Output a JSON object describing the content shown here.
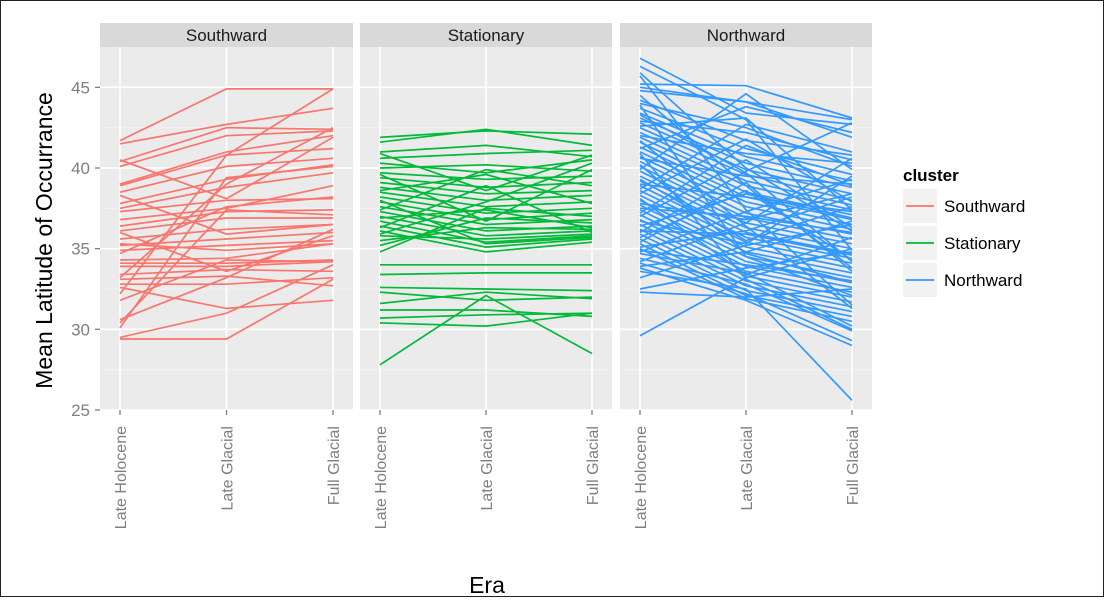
{
  "chart_data": {
    "type": "line",
    "ylabel": "Mean Latitude of Occurrance",
    "xlabel": "Era",
    "ylim": [
      25,
      47.5
    ],
    "yticks": [
      25,
      30,
      35,
      40,
      45
    ],
    "x_categories": [
      "Late Holocene",
      "Late Glacial",
      "Full Glacial"
    ],
    "grid": "on",
    "legend": {
      "title": "cluster",
      "position": "right"
    },
    "colors": {
      "Southward": "#F8766D",
      "Stationary": "#00BA38",
      "Northward": "#3399FF"
    },
    "panels": [
      {
        "name": "Southward",
        "lines": [
          [
            41.7,
            44.9,
            44.9
          ],
          [
            41.5,
            42.7,
            43.7
          ],
          [
            40.4,
            42.5,
            42.4
          ],
          [
            40.1,
            42.0,
            42.3
          ],
          [
            39.0,
            41.0,
            42.0
          ],
          [
            38.9,
            40.8,
            41.2
          ],
          [
            38.5,
            40.1,
            40.6
          ],
          [
            37.8,
            39.3,
            40.2
          ],
          [
            37.5,
            38.8,
            39.7
          ],
          [
            37.3,
            38.0,
            38.1
          ],
          [
            36.8,
            37.5,
            38.9
          ],
          [
            36.4,
            37.3,
            37.4
          ],
          [
            36.1,
            36.9,
            36.9
          ],
          [
            35.6,
            36.2,
            36.5
          ],
          [
            35.2,
            35.6,
            36.0
          ],
          [
            34.9,
            35.2,
            35.5
          ],
          [
            34.3,
            34.4,
            35.3
          ],
          [
            34.1,
            34.1,
            34.3
          ],
          [
            33.9,
            33.9,
            34.2
          ],
          [
            33.4,
            33.7,
            33.6
          ],
          [
            33.1,
            33.3,
            32.7
          ],
          [
            32.8,
            32.8,
            33.2
          ],
          [
            32.6,
            31.3,
            31.8
          ],
          [
            31.8,
            34.3,
            34.2
          ],
          [
            30.6,
            33.2,
            36.2
          ],
          [
            30.4,
            37.4,
            37.1
          ],
          [
            30.1,
            39.4,
            40.1
          ],
          [
            29.4,
            29.4,
            33.1
          ],
          [
            29.5,
            31.0,
            34.0
          ],
          [
            40.5,
            38.1,
            41.9
          ],
          [
            38.3,
            35.9,
            36.5
          ],
          [
            36.0,
            33.6,
            35.8
          ],
          [
            34.7,
            37.6,
            38.2
          ],
          [
            33.2,
            39.0,
            42.5
          ],
          [
            32.2,
            40.8,
            44.9
          ],
          [
            35.3,
            34.9,
            35.3
          ]
        ]
      },
      {
        "name": "Stationary",
        "lines": [
          [
            41.9,
            42.3,
            42.1
          ],
          [
            41.6,
            42.4,
            41.4
          ],
          [
            41.0,
            41.4,
            40.7
          ],
          [
            40.6,
            40.9,
            41.1
          ],
          [
            40.3,
            39.7,
            40.5
          ],
          [
            40.0,
            40.2,
            39.8
          ],
          [
            39.7,
            39.3,
            39.5
          ],
          [
            39.4,
            38.8,
            39.1
          ],
          [
            39.1,
            38.4,
            38.6
          ],
          [
            38.8,
            38.0,
            38.3
          ],
          [
            38.5,
            37.6,
            37.9
          ],
          [
            38.2,
            37.2,
            37.5
          ],
          [
            37.9,
            36.8,
            37.2
          ],
          [
            37.6,
            36.5,
            36.8
          ],
          [
            37.3,
            36.1,
            36.4
          ],
          [
            37.0,
            35.8,
            36.1
          ],
          [
            36.7,
            35.4,
            35.8
          ],
          [
            36.4,
            35.1,
            35.6
          ],
          [
            36.1,
            34.8,
            35.4
          ],
          [
            35.8,
            35.6,
            35.9
          ],
          [
            35.5,
            36.3,
            36.2
          ],
          [
            35.2,
            36.9,
            36.6
          ],
          [
            34.8,
            37.5,
            37.0
          ],
          [
            34.0,
            34.0,
            34.0
          ],
          [
            33.4,
            33.5,
            33.5
          ],
          [
            32.6,
            32.5,
            32.4
          ],
          [
            32.3,
            31.8,
            32.0
          ],
          [
            31.6,
            32.3,
            31.9
          ],
          [
            31.2,
            31.2,
            30.8
          ],
          [
            30.7,
            30.9,
            31.0
          ],
          [
            30.4,
            30.2,
            31.0
          ],
          [
            27.8,
            32.1,
            28.5
          ],
          [
            40.9,
            38.6,
            40.8
          ],
          [
            38.6,
            39.6,
            37.8
          ],
          [
            36.3,
            38.9,
            36.0
          ],
          [
            39.6,
            36.7,
            39.9
          ],
          [
            37.4,
            39.9,
            38.9
          ],
          [
            35.9,
            37.9,
            40.3
          ],
          [
            38.0,
            35.3,
            35.7
          ],
          [
            36.9,
            37.4,
            36.3
          ]
        ]
      },
      {
        "name": "Northward",
        "lines": [
          [
            46.8,
            43.4,
            42.7
          ],
          [
            45.2,
            45.1,
            43.1
          ],
          [
            45.0,
            44.1,
            41.9
          ],
          [
            44.2,
            41.7,
            40.8
          ],
          [
            44.0,
            42.5,
            40.1
          ],
          [
            43.7,
            41.2,
            39.6
          ],
          [
            43.4,
            40.7,
            39.2
          ],
          [
            43.1,
            40.3,
            38.8
          ],
          [
            42.8,
            39.9,
            38.4
          ],
          [
            42.5,
            39.6,
            38.0
          ],
          [
            42.2,
            39.2,
            37.7
          ],
          [
            41.9,
            38.9,
            37.4
          ],
          [
            41.6,
            38.5,
            37.1
          ],
          [
            41.3,
            38.2,
            36.8
          ],
          [
            41.0,
            37.9,
            36.5
          ],
          [
            40.7,
            37.6,
            36.2
          ],
          [
            40.4,
            37.2,
            35.9
          ],
          [
            40.1,
            36.9,
            35.6
          ],
          [
            39.8,
            36.6,
            35.3
          ],
          [
            39.5,
            36.3,
            35.0
          ],
          [
            39.2,
            36.0,
            34.7
          ],
          [
            38.9,
            35.7,
            34.4
          ],
          [
            38.6,
            35.4,
            34.1
          ],
          [
            38.3,
            35.1,
            33.8
          ],
          [
            38.0,
            34.8,
            33.5
          ],
          [
            37.7,
            34.5,
            33.2
          ],
          [
            37.4,
            34.2,
            32.9
          ],
          [
            37.1,
            33.9,
            32.6
          ],
          [
            36.8,
            33.6,
            32.3
          ],
          [
            36.5,
            33.3,
            32.0
          ],
          [
            36.2,
            33.0,
            31.7
          ],
          [
            35.9,
            32.7,
            31.4
          ],
          [
            35.6,
            32.4,
            31.1
          ],
          [
            35.3,
            32.1,
            30.8
          ],
          [
            35.0,
            31.9,
            30.5
          ],
          [
            34.7,
            33.5,
            30.2
          ],
          [
            34.4,
            32.8,
            29.9
          ],
          [
            34.1,
            32.2,
            29.3
          ],
          [
            33.8,
            31.8,
            29.0
          ],
          [
            33.6,
            32.5,
            25.6
          ],
          [
            32.3,
            32.0,
            32.5
          ],
          [
            32.5,
            33.8,
            34.8
          ],
          [
            33.2,
            35.2,
            36.5
          ],
          [
            29.6,
            33.2,
            35.0
          ],
          [
            34.8,
            37.3,
            39.3
          ],
          [
            36.0,
            39.8,
            42.8
          ],
          [
            37.2,
            41.4,
            38.9
          ],
          [
            38.7,
            42.7,
            41.0
          ],
          [
            39.9,
            44.6,
            39.9
          ],
          [
            41.2,
            43.8,
            42.2
          ],
          [
            42.6,
            43.1,
            37.4
          ],
          [
            44.5,
            38.9,
            33.8
          ],
          [
            45.7,
            37.4,
            31.5
          ],
          [
            43.9,
            34.5,
            32.1
          ],
          [
            40.9,
            33.1,
            30.0
          ],
          [
            39.3,
            35.5,
            37.6
          ],
          [
            37.8,
            36.8,
            38.4
          ],
          [
            36.4,
            38.4,
            36.9
          ],
          [
            35.1,
            36.1,
            38.2
          ],
          [
            33.9,
            34.8,
            36.7
          ],
          [
            42.0,
            40.9,
            40.3
          ],
          [
            40.6,
            39.5,
            39.0
          ],
          [
            39.0,
            38.2,
            37.3
          ],
          [
            37.5,
            37.0,
            36.0
          ],
          [
            36.1,
            35.9,
            34.6
          ],
          [
            34.9,
            34.0,
            33.0
          ],
          [
            43.3,
            39.7,
            34.2
          ],
          [
            41.7,
            36.4,
            31.3
          ],
          [
            40.2,
            34.7,
            32.9
          ],
          [
            38.1,
            33.4,
            35.7
          ],
          [
            37.0,
            40.5,
            36.3
          ],
          [
            35.4,
            39.1,
            33.6
          ],
          [
            34.2,
            36.6,
            40.6
          ],
          [
            42.9,
            42.2,
            40.5
          ],
          [
            44.8,
            44.1,
            43.0
          ],
          [
            45.9,
            40.0,
            36.1
          ],
          [
            46.3,
            43.0,
            34.9
          ],
          [
            38.4,
            41.8,
            37.9
          ],
          [
            36.7,
            35.3,
            39.5
          ],
          [
            35.7,
            38.6,
            34.3
          ]
        ]
      }
    ]
  }
}
